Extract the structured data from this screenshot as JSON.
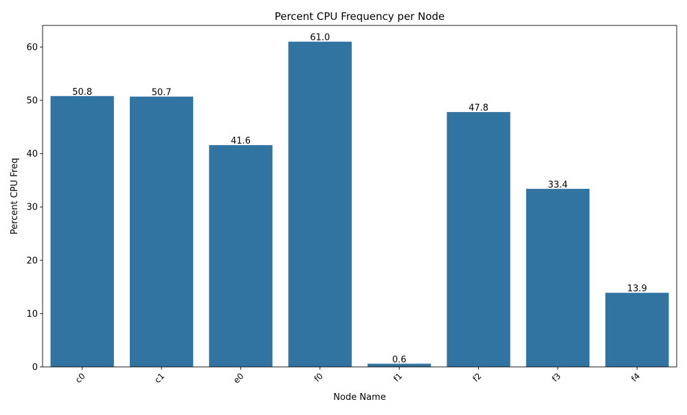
{
  "chart_data": {
    "type": "bar",
    "title": "Percent CPU Frequency per Node",
    "xlabel": "Node Name",
    "ylabel": "Percent CPU Freq",
    "categories": [
      "c0",
      "c1",
      "e0",
      "f0",
      "f1",
      "f2",
      "f3",
      "f4"
    ],
    "values": [
      50.8,
      50.7,
      41.6,
      61.0,
      0.6,
      47.8,
      33.4,
      13.9
    ],
    "data_labels": [
      "50.8",
      "50.7",
      "41.6",
      "61.0",
      "0.6",
      "47.8",
      "33.4",
      "13.9"
    ],
    "yticks": [
      0,
      10,
      20,
      30,
      40,
      50,
      60
    ],
    "ylim": [
      0,
      64.05
    ],
    "grid": false,
    "legend": "none",
    "bar_color": "#3274a1",
    "xtick_rotation_deg": 45
  }
}
